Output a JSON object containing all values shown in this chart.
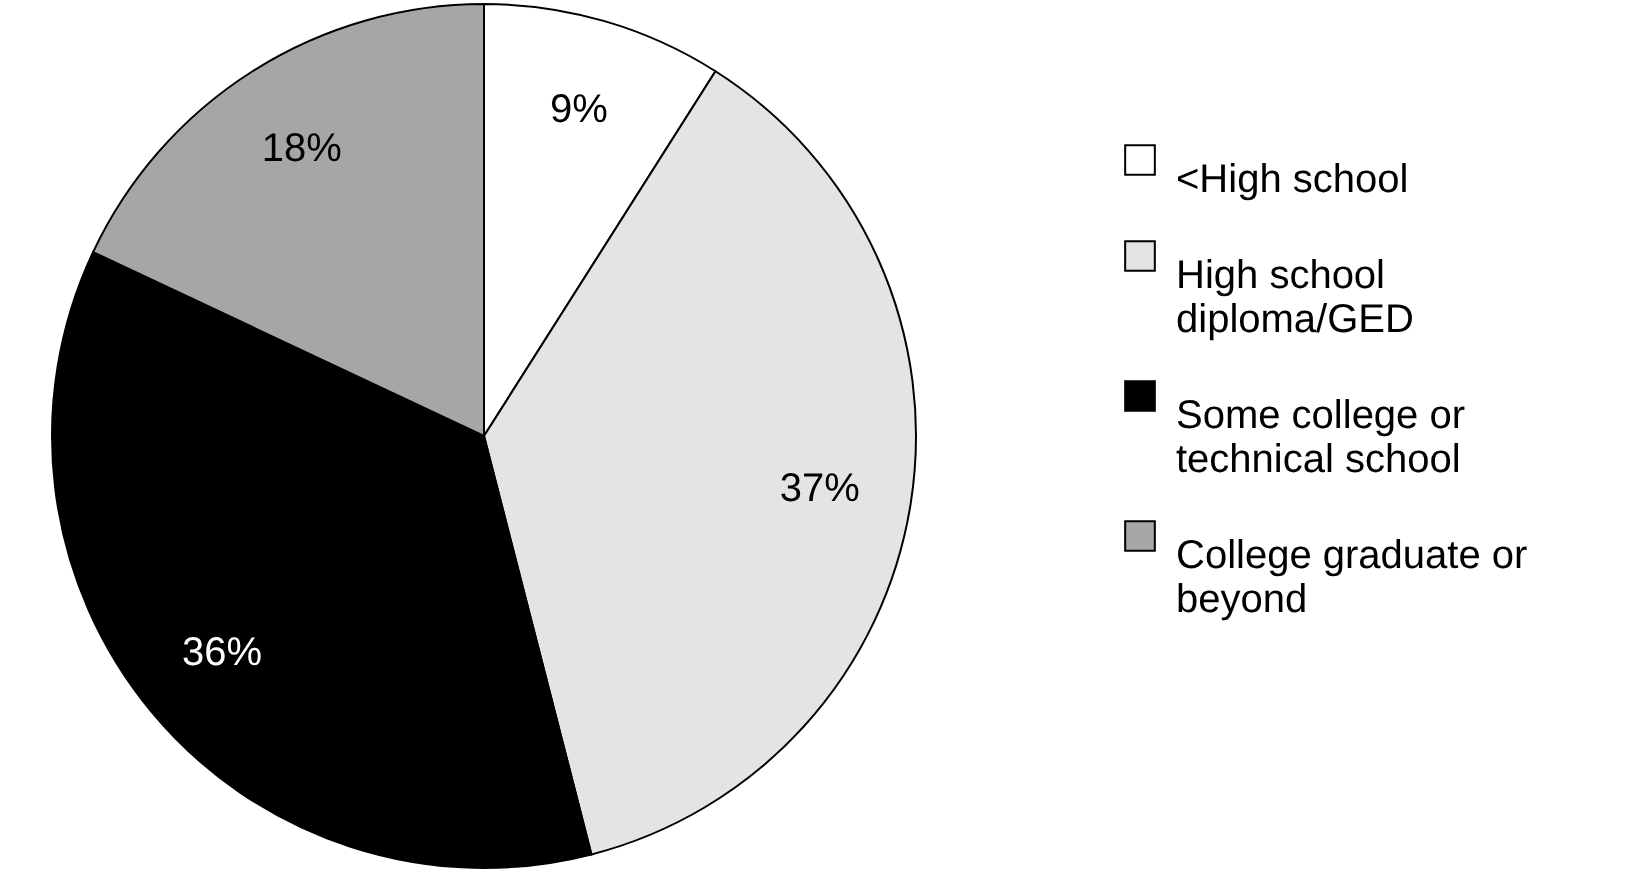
{
  "chart_data": {
    "type": "pie",
    "categories": [
      "<High school",
      "High school diploma/GED",
      "Some college or technical school",
      "College graduate or beyond"
    ],
    "values": [
      9,
      37,
      36,
      18
    ],
    "value_labels": [
      "9%",
      "37%",
      "36%",
      "18%"
    ],
    "colors": [
      "#ffffff",
      "#e4e4e4",
      "#000000",
      "#a6a6a6"
    ],
    "legend": "right"
  }
}
